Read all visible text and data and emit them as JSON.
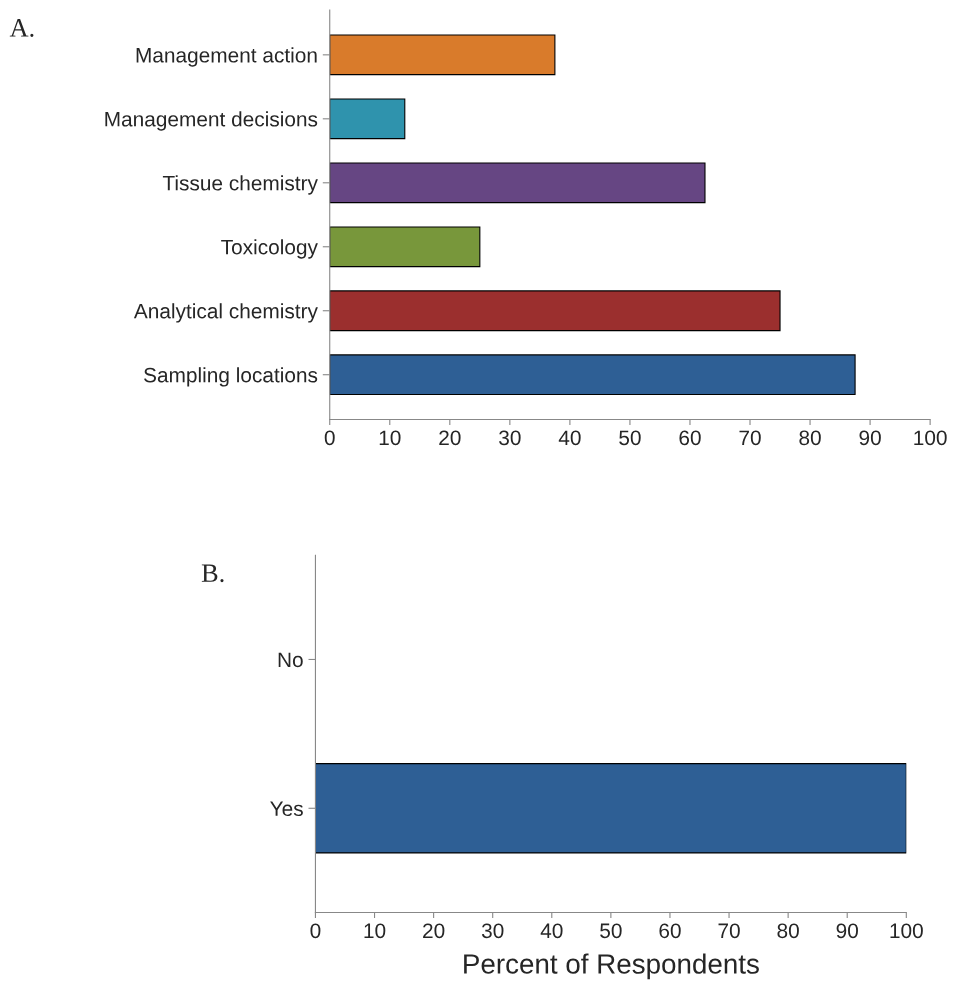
{
  "chart_data": [
    {
      "type": "bar",
      "title": "A.",
      "orientation": "horizontal",
      "categories": [
        "Management action",
        "Management decisions",
        "Tissue chemistry",
        "Toxicology",
        "Analytical chemistry",
        "Sampling locations"
      ],
      "values": [
        37.5,
        12.5,
        62.5,
        25,
        75,
        87.5
      ],
      "colors": [
        "#d97b2b",
        "#2f93ad",
        "#664683",
        "#78973b",
        "#9b2f2e",
        "#2e5f95"
      ],
      "xlim": [
        0,
        100
      ],
      "xticks": [
        0,
        10,
        20,
        30,
        40,
        50,
        60,
        70,
        80,
        90,
        100
      ],
      "grid": false,
      "legend": false
    },
    {
      "type": "bar",
      "title": "B.",
      "orientation": "horizontal",
      "xlabel": "Percent of Respondents",
      "categories": [
        "No",
        "Yes"
      ],
      "values": [
        0,
        100
      ],
      "colors": [
        "#2e5f95",
        "#2e5f95"
      ],
      "xlim": [
        0,
        100
      ],
      "xticks": [
        0,
        10,
        20,
        30,
        40,
        50,
        60,
        70,
        80,
        90,
        100
      ],
      "grid": false,
      "legend": false
    }
  ]
}
